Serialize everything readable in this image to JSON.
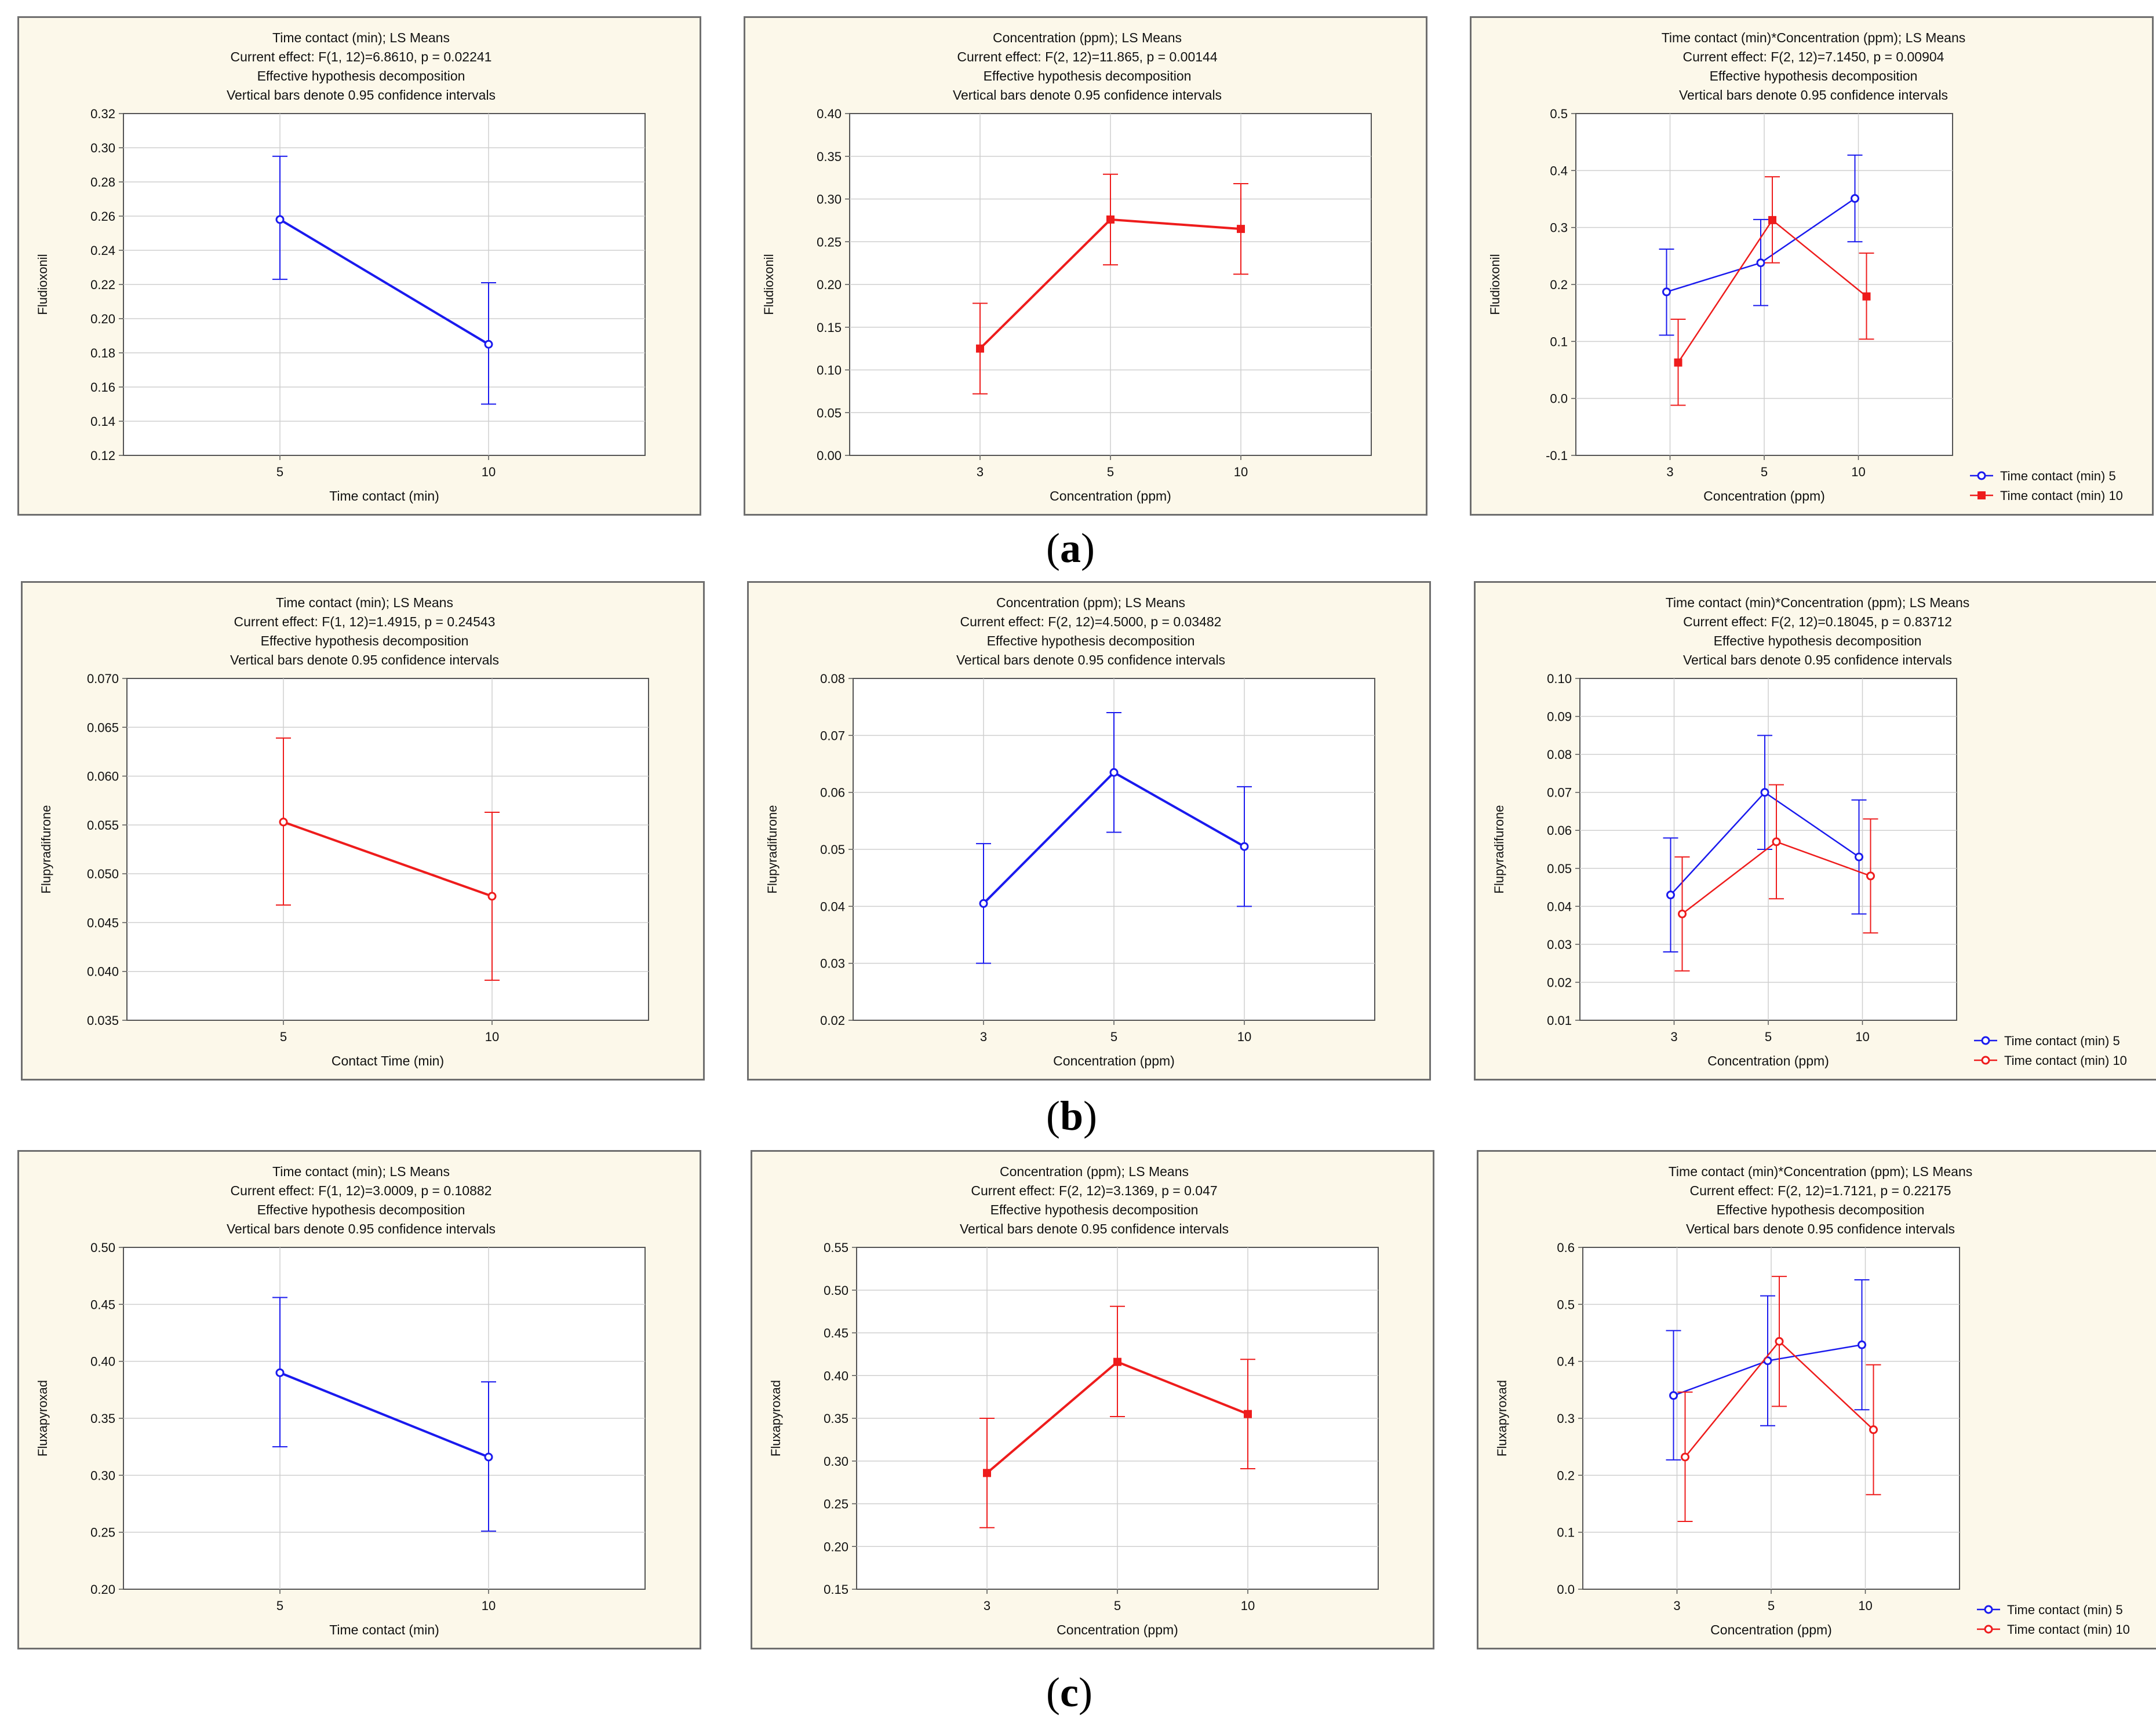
{
  "panel_labels": {
    "a": "a",
    "b": "b",
    "c": "c"
  },
  "colors": {
    "blue": "#1a1aee",
    "red": "#ee1c1c",
    "background": "#fcf8ea",
    "grid": "#c8c8c8"
  },
  "chart_data": [
    {
      "id": "a1",
      "type": "line",
      "title": [
        "Time contact (min); LS Means",
        "Current effect: F(1, 12)=6.8610, p = 0.02241",
        "Effective hypothesis decomposition",
        "Vertical bars denote 0.95 confidence intervals"
      ],
      "xlabel": "Time contact (min)",
      "ylabel": "Fludioxonil",
      "categories": [
        "5",
        "10"
      ],
      "ylim": [
        0.12,
        0.32
      ],
      "yticks": [
        "0.12",
        "0.14",
        "0.16",
        "0.18",
        "0.20",
        "0.22",
        "0.24",
        "0.26",
        "0.28",
        "0.30",
        "0.32"
      ],
      "series": [
        {
          "name": "",
          "color": "#1a1aee",
          "marker": "circle",
          "values": [
            0.258,
            0.185
          ],
          "ci_low": [
            0.223,
            0.15
          ],
          "ci_high": [
            0.295,
            0.221
          ]
        }
      ]
    },
    {
      "id": "a2",
      "type": "line",
      "title": [
        "Concentration  (ppm); LS Means",
        "Current effect: F(2, 12)=11.865, p = 0.00144",
        "Effective hypothesis decomposition",
        "Vertical bars denote 0.95 confidence intervals"
      ],
      "xlabel": "Concentration  (ppm)",
      "ylabel": "Fludioxonil",
      "categories": [
        "3",
        "5",
        "10"
      ],
      "ylim": [
        0.0,
        0.4
      ],
      "yticks": [
        "0.00",
        "0.05",
        "0.10",
        "0.15",
        "0.20",
        "0.25",
        "0.30",
        "0.35",
        "0.40"
      ],
      "series": [
        {
          "name": "",
          "color": "#ee1c1c",
          "marker": "square",
          "values": [
            0.125,
            0.276,
            0.265
          ],
          "ci_low": [
            0.072,
            0.223,
            0.212
          ],
          "ci_high": [
            0.178,
            0.329,
            0.318
          ]
        }
      ]
    },
    {
      "id": "a3",
      "type": "line",
      "title": [
        "Time contact (min)*Concentration  (ppm); LS Means",
        "Current effect: F(2, 12)=7.1450, p = 0.00904",
        "Effective hypothesis decomposition",
        "Vertical bars denote 0.95 confidence intervals"
      ],
      "xlabel": "Concentration  (ppm)",
      "ylabel": "Fludioxonil",
      "categories": [
        "3",
        "5",
        "10"
      ],
      "ylim": [
        -0.1,
        0.5
      ],
      "yticks": [
        "-0.1",
        "0.0",
        "0.1",
        "0.2",
        "0.3",
        "0.4",
        "0.5"
      ],
      "legend_position": "bottom-right",
      "series": [
        {
          "name": "Time contact (min) 5",
          "color": "#1a1aee",
          "marker": "circle",
          "values": [
            0.187,
            0.238,
            0.351
          ],
          "ci_low": [
            0.111,
            0.163,
            0.275
          ],
          "ci_high": [
            0.262,
            0.314,
            0.427
          ]
        },
        {
          "name": "Time contact (min) 10",
          "color": "#ee1c1c",
          "marker": "square",
          "values": [
            0.063,
            0.313,
            0.179
          ],
          "ci_low": [
            -0.012,
            0.238,
            0.104
          ],
          "ci_high": [
            0.139,
            0.389,
            0.255
          ]
        }
      ]
    },
    {
      "id": "b1",
      "type": "line",
      "title": [
        "Time  contact (min); LS Means",
        "Current effect: F(1, 12)=1.4915, p = 0.24543",
        "Effective hypothesis decomposition",
        "Vertical bars denote 0.95 confidence intervals"
      ],
      "xlabel": "Contact Time (min)",
      "ylabel": "Flupyradifurone",
      "categories": [
        "5",
        "10"
      ],
      "ylim": [
        0.035,
        0.07
      ],
      "yticks": [
        "0.035",
        "0.040",
        "0.045",
        "0.050",
        "0.055",
        "0.060",
        "0.065",
        "0.070"
      ],
      "series": [
        {
          "name": "",
          "color": "#ee1c1c",
          "marker": "circle",
          "values": [
            0.0553,
            0.0477
          ],
          "ci_low": [
            0.0468,
            0.0391
          ],
          "ci_high": [
            0.0639,
            0.0563
          ]
        }
      ]
    },
    {
      "id": "b2",
      "type": "line",
      "title": [
        "Concentration  (ppm); LS Means",
        "Current effect: F(2, 12)=4.5000, p = 0.03482",
        "Effective hypothesis decomposition",
        "Vertical bars denote 0.95 confidence intervals"
      ],
      "xlabel": "Concentration  (ppm)",
      "ylabel": "Flupyradifurone",
      "categories": [
        "3",
        "5",
        "10"
      ],
      "ylim": [
        0.02,
        0.08
      ],
      "yticks": [
        "0.02",
        "0.03",
        "0.04",
        "0.05",
        "0.06",
        "0.07",
        "0.08"
      ],
      "series": [
        {
          "name": "",
          "color": "#1a1aee",
          "marker": "circle",
          "values": [
            0.0405,
            0.0635,
            0.0505
          ],
          "ci_low": [
            0.03,
            0.053,
            0.04
          ],
          "ci_high": [
            0.051,
            0.074,
            0.061
          ]
        }
      ]
    },
    {
      "id": "b3",
      "type": "line",
      "title": [
        "Time contact (min)*Concentration  (ppm); LS Means",
        "Current effect: F(2, 12)=0.18045, p = 0.83712",
        "Effective hypothesis decomposition",
        "Vertical bars denote 0.95 confidence intervals"
      ],
      "xlabel": "Concentration  (ppm)",
      "ylabel": "Flupyradifurone",
      "categories": [
        "3",
        "5",
        "10"
      ],
      "ylim": [
        0.01,
        0.1
      ],
      "yticks": [
        "0.01",
        "0.02",
        "0.03",
        "0.04",
        "0.05",
        "0.06",
        "0.07",
        "0.08",
        "0.09",
        "0.10"
      ],
      "legend_position": "bottom-right",
      "series": [
        {
          "name": "Time contact (min) 5",
          "color": "#1a1aee",
          "marker": "circle",
          "values": [
            0.043,
            0.07,
            0.053
          ],
          "ci_low": [
            0.028,
            0.055,
            0.038
          ],
          "ci_high": [
            0.058,
            0.085,
            0.068
          ]
        },
        {
          "name": "Time contact (min) 10",
          "color": "#ee1c1c",
          "marker": "circle",
          "values": [
            0.038,
            0.057,
            0.048
          ],
          "ci_low": [
            0.023,
            0.042,
            0.033
          ],
          "ci_high": [
            0.053,
            0.072,
            0.063
          ]
        }
      ]
    },
    {
      "id": "c1",
      "type": "line",
      "title": [
        "Time contact (min); LS Means",
        "Current effect: F(1, 12)=3.0009, p = 0.10882",
        "Effective hypothesis decomposition",
        "Vertical bars denote 0.95 confidence intervals"
      ],
      "xlabel": "Time contact (min)",
      "ylabel": "Fluxapyroxad",
      "categories": [
        "5",
        "10"
      ],
      "ylim": [
        0.2,
        0.5
      ],
      "yticks": [
        "0.20",
        "0.25",
        "0.30",
        "0.35",
        "0.40",
        "0.45",
        "0.50"
      ],
      "series": [
        {
          "name": "",
          "color": "#1a1aee",
          "marker": "circle",
          "values": [
            0.39,
            0.316
          ],
          "ci_low": [
            0.325,
            0.251
          ],
          "ci_high": [
            0.456,
            0.382
          ]
        }
      ]
    },
    {
      "id": "c2",
      "type": "line",
      "title": [
        "Concentration  (ppm); LS Means",
        "Current effect: F(2, 12)=3.1369, p = 0.047",
        "Effective hypothesis decomposition",
        "Vertical bars denote 0.95 confidence intervals"
      ],
      "xlabel": "Concentration  (ppm)",
      "ylabel": "Fluxapyroxad",
      "categories": [
        "3",
        "5",
        "10"
      ],
      "ylim": [
        0.15,
        0.55
      ],
      "yticks": [
        "0.15",
        "0.20",
        "0.25",
        "0.30",
        "0.35",
        "0.40",
        "0.45",
        "0.50",
        "0.55"
      ],
      "series": [
        {
          "name": "",
          "color": "#ee1c1c",
          "marker": "square",
          "values": [
            0.286,
            0.416,
            0.355
          ],
          "ci_low": [
            0.222,
            0.352,
            0.291
          ],
          "ci_high": [
            0.35,
            0.481,
            0.419
          ]
        }
      ]
    },
    {
      "id": "c3",
      "type": "line",
      "title": [
        "Time contact (min)*Concentration  (ppm); LS Means",
        "Current effect: F(2, 12)=1.7121, p = 0.22175",
        "Effective hypothesis decomposition",
        "Vertical bars denote 0.95 confidence intervals"
      ],
      "xlabel": "Concentration  (ppm)",
      "ylabel": "Fluxapyroxad",
      "categories": [
        "3",
        "5",
        "10"
      ],
      "ylim": [
        0.0,
        0.6
      ],
      "yticks": [
        "0.0",
        "0.1",
        "0.2",
        "0.3",
        "0.4",
        "0.5",
        "0.6"
      ],
      "legend_position": "bottom-right",
      "series": [
        {
          "name": "Time contact (min) 5",
          "color": "#1a1aee",
          "marker": "circle",
          "values": [
            0.34,
            0.401,
            0.429
          ],
          "ci_low": [
            0.227,
            0.287,
            0.315
          ],
          "ci_high": [
            0.454,
            0.515,
            0.543
          ]
        },
        {
          "name": "Time contact (min) 10",
          "color": "#ee1c1c",
          "marker": "circle",
          "values": [
            0.232,
            0.435,
            0.28
          ],
          "ci_low": [
            0.119,
            0.321,
            0.166
          ],
          "ci_high": [
            0.346,
            0.549,
            0.394
          ]
        }
      ]
    }
  ]
}
